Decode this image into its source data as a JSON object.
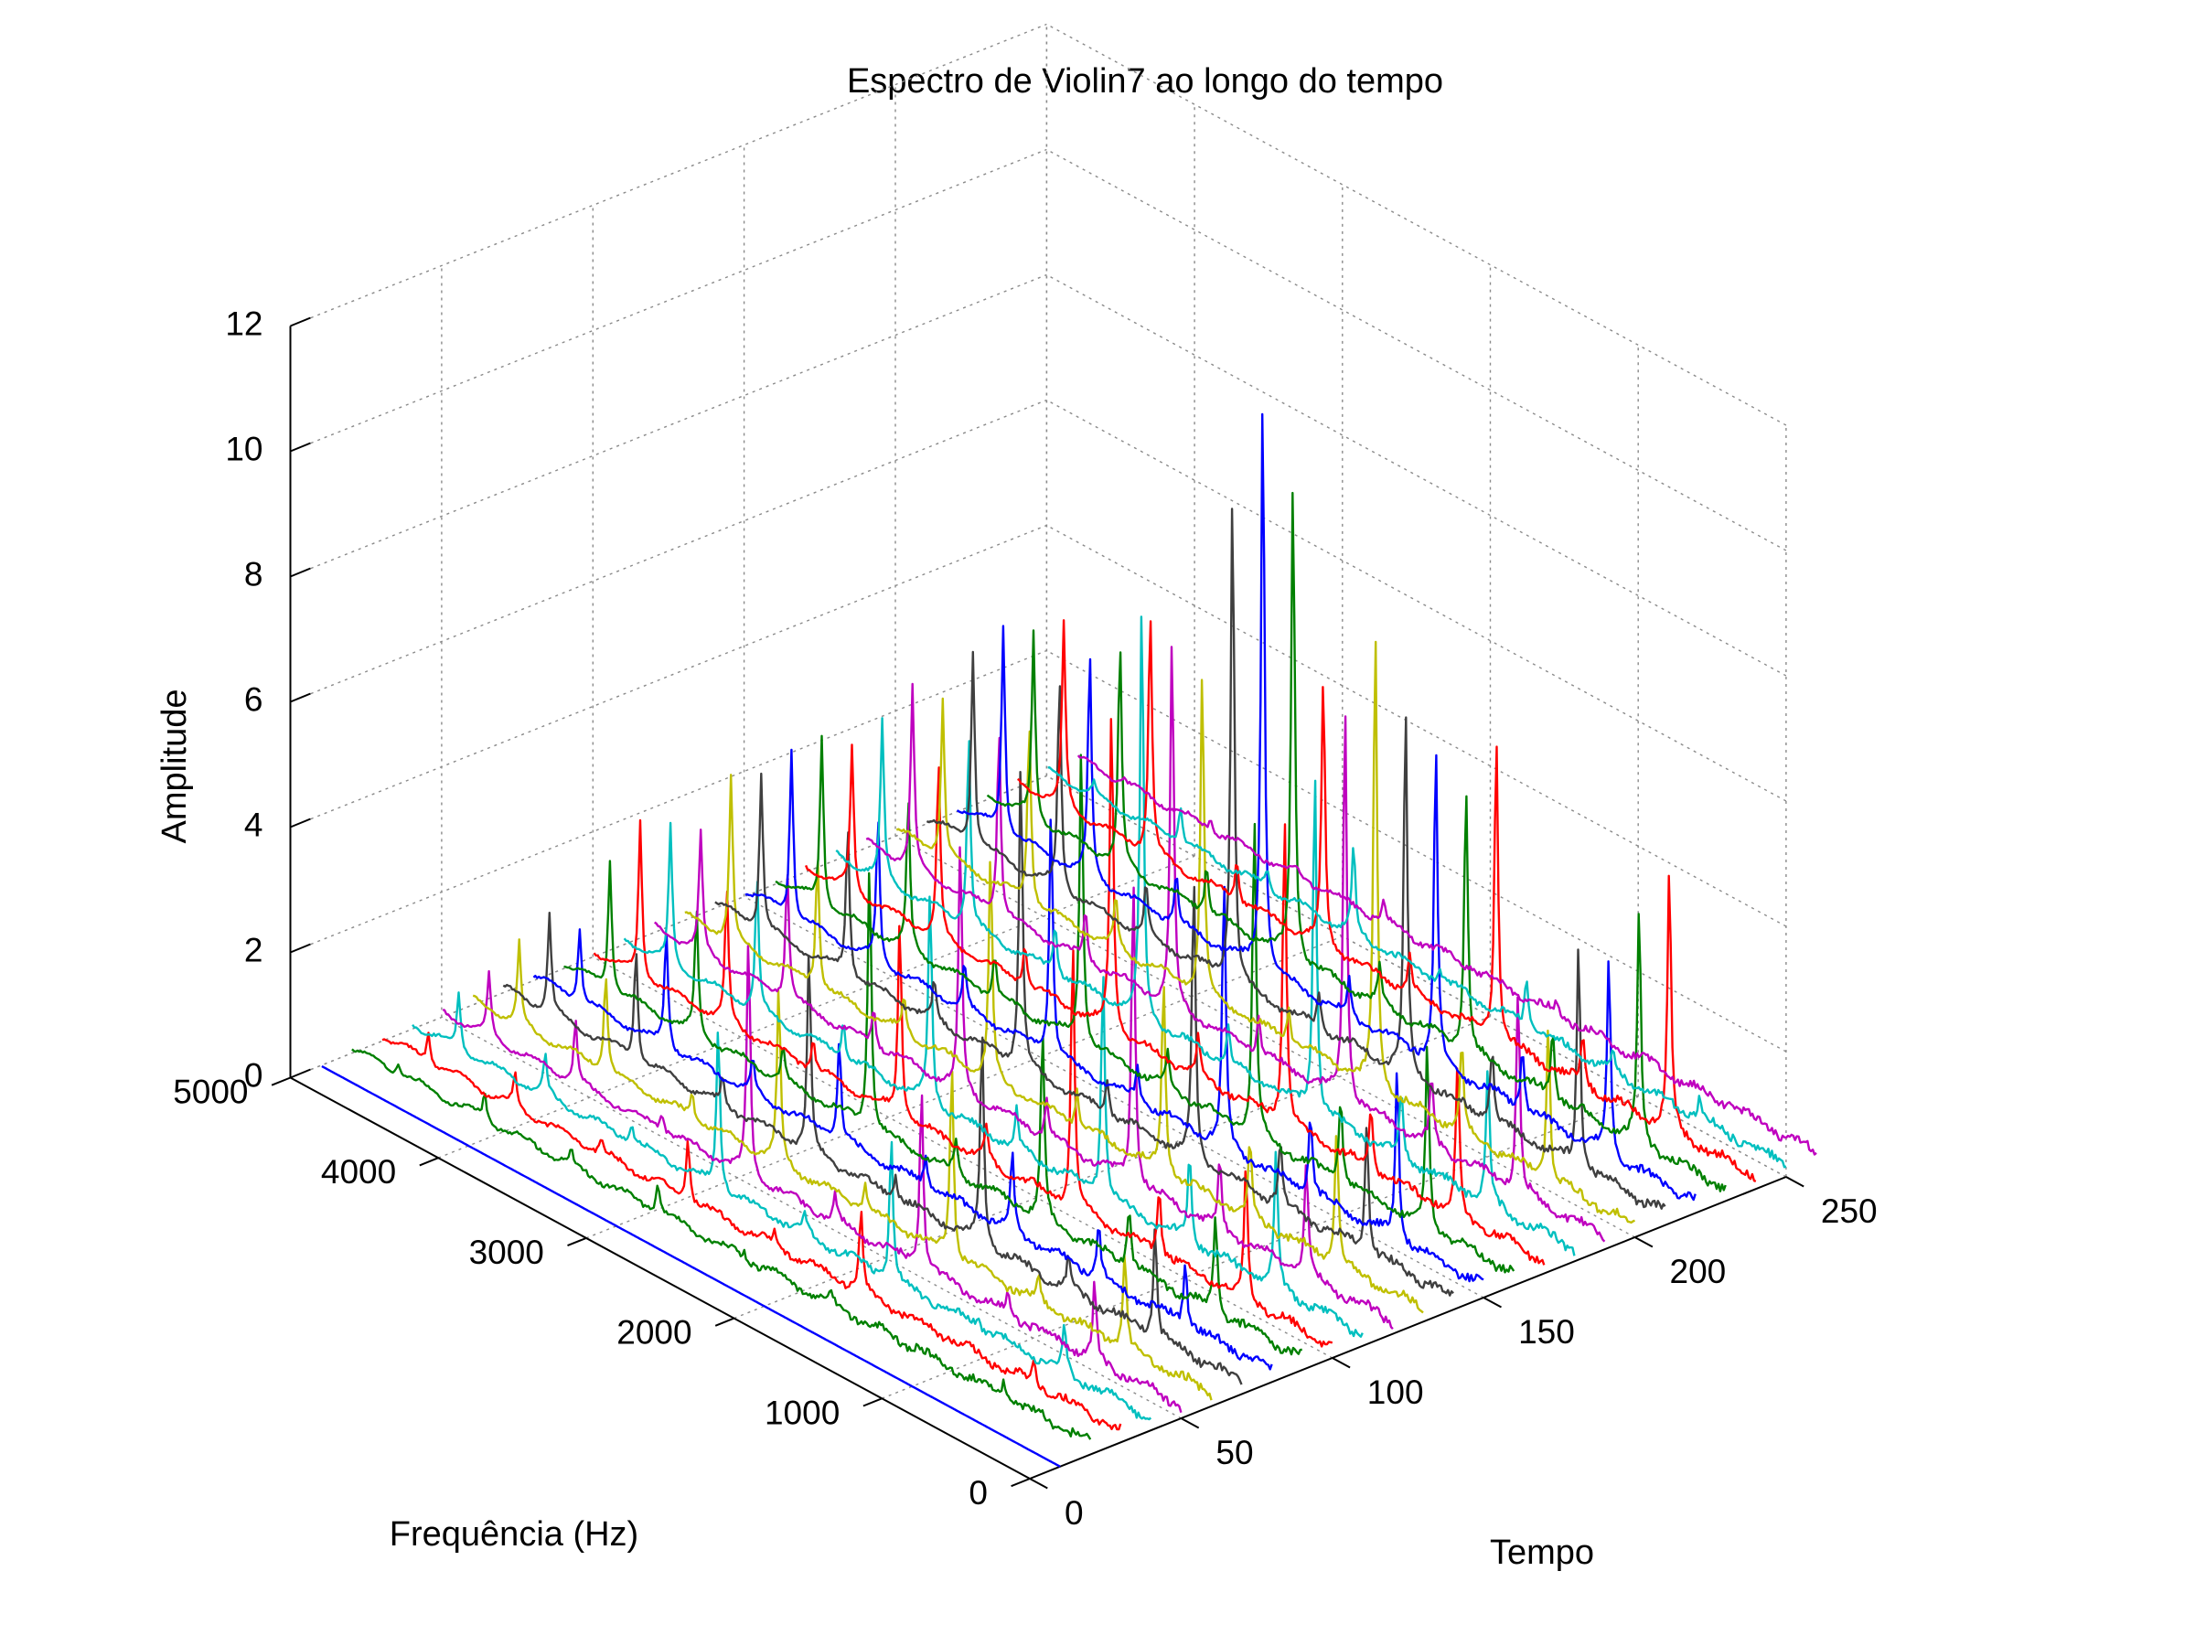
{
  "chart_data": {
    "type": "line",
    "view": "3d-waterfall",
    "title": "Espectro de Violin7 ao longo do tempo",
    "xlabel": "Frequência (Hz)",
    "ylabel": "Tempo",
    "zlabel": "Amplitude",
    "xlim": [
      0,
      5000
    ],
    "ylim": [
      0,
      250
    ],
    "zlim": [
      0,
      12
    ],
    "xticks": [
      "0",
      "1000",
      "2000",
      "3000",
      "4000",
      "5000"
    ],
    "yticks": [
      "0",
      "50",
      "100",
      "150",
      "200",
      "250"
    ],
    "zticks": [
      "0",
      "2",
      "4",
      "6",
      "8",
      "10",
      "12"
    ],
    "grid": true,
    "legend": "none",
    "color_cycle": [
      "#0000ff",
      "#008000",
      "#ff0000",
      "#00bfbf",
      "#bf00bf",
      "#bfbf00",
      "#3f3f3f"
    ],
    "fundamental_hz": 585,
    "harmonics_hz": [
      585,
      1170,
      1755,
      2340,
      2925,
      3510,
      4095,
      4680
    ],
    "noise_floor": 0.15,
    "series": [
      {
        "time": 10,
        "peaks": [
          0,
          0,
          0,
          0,
          0,
          0,
          0,
          0
        ]
      },
      {
        "time": 20,
        "peaks": [
          0.3,
          0.1,
          0.2,
          0.1,
          0.5,
          0.2,
          0.4,
          0.2
        ]
      },
      {
        "time": 30,
        "peaks": [
          0.4,
          0.1,
          1.3,
          0.2,
          1.0,
          0.2,
          0.5,
          0.5
        ]
      },
      {
        "time": 40,
        "peaks": [
          0.7,
          0.2,
          2.3,
          0.3,
          2.6,
          0.3,
          0.6,
          0.9
        ]
      },
      {
        "time": 50,
        "peaks": [
          1.2,
          0.3,
          2.9,
          0.4,
          3.8,
          0.3,
          1.0,
          1.0
        ]
      },
      {
        "time": 60,
        "peaks": [
          1.5,
          0.4,
          3.1,
          0.4,
          2.8,
          0.4,
          1.6,
          1.3
        ]
      },
      {
        "time": 70,
        "peaks": [
          1.8,
          0.5,
          3.4,
          0.4,
          3.2,
          0.4,
          1.8,
          1.6
        ]
      },
      {
        "time": 80,
        "peaks": [
          1.0,
          0.9,
          1.2,
          0.5,
          1.6,
          0.5,
          1.9,
          1.2
        ]
      },
      {
        "time": 90,
        "peaks": [
          1.6,
          1.0,
          3.0,
          0.5,
          4.3,
          0.5,
          2.0,
          2.1
        ]
      },
      {
        "time": 100,
        "peaks": [
          2.1,
          1.1,
          4.3,
          0.5,
          3.2,
          0.5,
          2.1,
          2.5
        ]
      },
      {
        "time": 110,
        "peaks": [
          2.2,
          1.4,
          3.7,
          0.6,
          3.4,
          0.6,
          2.1,
          2.2
        ]
      },
      {
        "time": 120,
        "peaks": [
          1.8,
          1.1,
          5.0,
          0.6,
          4.0,
          0.6,
          2.1,
          1.9
        ]
      },
      {
        "time": 130,
        "peaks": [
          2.2,
          1.2,
          3.1,
          0.6,
          3.6,
          0.6,
          2.1,
          2.6
        ]
      },
      {
        "time": 140,
        "peaks": [
          2.1,
          1.0,
          4.5,
          0.6,
          4.9,
          0.6,
          2.4,
          2.5
        ]
      },
      {
        "time": 150,
        "peaks": [
          2.8,
          1.3,
          4.3,
          0.6,
          4.0,
          0.7,
          2.3,
          2.7
        ]
      },
      {
        "time": 160,
        "peaks": [
          2.9,
          1.4,
          5.2,
          0.6,
          4.8,
          0.7,
          2.4,
          2.7
        ]
      },
      {
        "time": 170,
        "peaks": [
          2.4,
          1.0,
          5.0,
          0.6,
          5.2,
          0.7,
          2.8,
          2.3
        ]
      },
      {
        "time": 180,
        "peaks": [
          2.2,
          1.0,
          5.6,
          0.6,
          6.6,
          0.8,
          3.1,
          2.5
        ]
      },
      {
        "time": 190,
        "peaks": [
          3.3,
          1.1,
          6.4,
          0.6,
          5.9,
          0.8,
          3.0,
          2.9
        ]
      },
      {
        "time": 200,
        "peaks": [
          2.5,
          1.4,
          7.4,
          0.6,
          5.2,
          0.8,
          2.9,
          2.5
        ]
      },
      {
        "time": 210,
        "peaks": [
          3.6,
          1.2,
          5.9,
          0.6,
          7.9,
          0.8,
          3.4,
          3.1
        ]
      },
      {
        "time": 220,
        "peaks": [
          3.2,
          1.0,
          5.1,
          0.6,
          9.3,
          0.8,
          3.6,
          3.3
        ]
      },
      {
        "time": 230,
        "peaks": [
          3.8,
          1.1,
          4.3,
          0.6,
          7.8,
          0.8,
          3.5,
          3.0
        ]
      },
      {
        "time": 240,
        "peaks": [
          4.2,
          0.8,
          4.9,
          0.6,
          4.3,
          0.7,
          3.9,
          2.9
        ]
      },
      {
        "time": 250,
        "peaks": [
          0.4,
          0.3,
          0.8,
          0.2,
          1.4,
          0.3,
          0.6,
          0.2
        ]
      },
      {
        "time": 260,
        "peaks": [
          0.1,
          0.1,
          0.2,
          0.1,
          0.3,
          0.1,
          0.2,
          0.1
        ]
      }
    ]
  }
}
